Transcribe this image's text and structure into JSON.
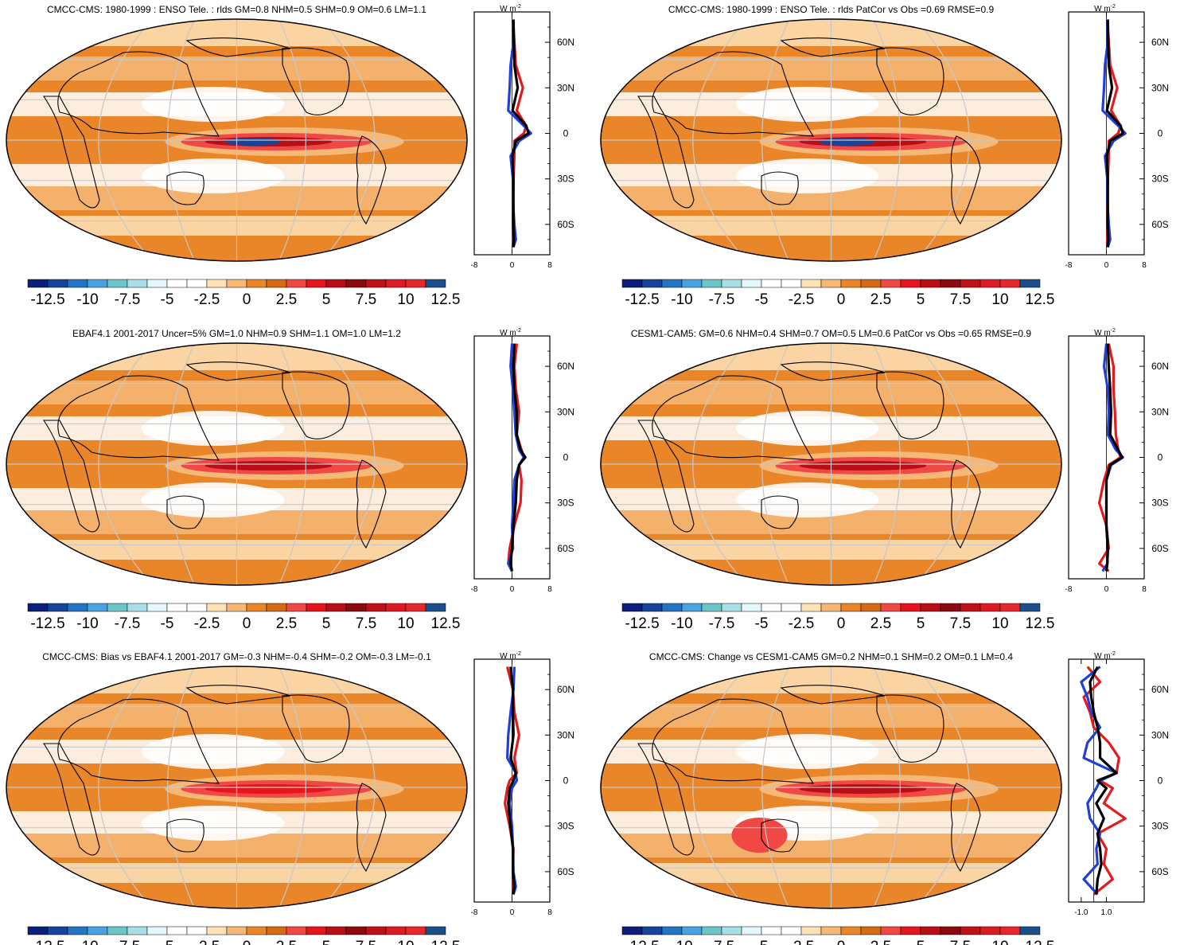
{
  "palette": [
    "#0b1f7a",
    "#16449a",
    "#2474c4",
    "#4aa3e0",
    "#6cc6c9",
    "#a8dfe6",
    "#e2f8fb",
    "#ffffff",
    "#ffffff",
    "#fde2b8",
    "#f6b877",
    "#e9862a",
    "#d36b16",
    "#f04845",
    "#e4151c",
    "#b80f16",
    "#8a0a10",
    "#c01018",
    "#dc1c22",
    "#e5282a",
    "#1b4f8a"
  ],
  "colorbar": {
    "labels": [
      "-12.5",
      "-10",
      "-7.5",
      "-5",
      "-2.5",
      "0",
      "2.5",
      "5",
      "7.5",
      "10",
      "12.5"
    ]
  },
  "zonal": {
    "unit": "W m",
    "unit_sup": "-2",
    "lat_labels": [
      "60N",
      "30N",
      "0",
      "30S",
      "60S"
    ],
    "series_colors": {
      "red": "#e41a1c",
      "blue": "#1f3fd9",
      "black": "#000000"
    }
  },
  "panels": [
    {
      "title": "CMCC-CMS: 1980-1999 : ENSO Tele. : rlds GM=0.8 NHM=0.5 SHM=0.9 OM=0.6 LM=1.1",
      "x_ticks": [
        "-8",
        "0",
        "8"
      ],
      "chart_data": {
        "type": "line",
        "y_axis": "latitude (deg)",
        "x_range": [
          -8,
          8
        ],
        "y_range": [
          -80,
          80
        ],
        "lat": [
          75,
          60,
          45,
          30,
          15,
          5,
          0,
          -5,
          -15,
          -30,
          -45,
          -60,
          -70,
          -75
        ],
        "series": [
          {
            "color": "red",
            "values": [
              0.2,
              0.5,
              0.8,
              2.3,
              1.0,
              3.0,
              2.5,
              0.5,
              0.5,
              0.3,
              0.2,
              0.3,
              0.2,
              0.3
            ]
          },
          {
            "color": "blue",
            "values": [
              0.2,
              0.3,
              -0.3,
              -0.5,
              -0.8,
              2.5,
              4.0,
              1.5,
              -0.3,
              0.2,
              0.2,
              0.5,
              0.8,
              0.3
            ]
          },
          {
            "color": "black",
            "values": [
              0.3,
              0.4,
              0.5,
              1.2,
              0.1,
              3.0,
              3.5,
              0.8,
              0.1,
              0.3,
              0.3,
              0.3,
              0.4,
              0.3
            ]
          }
        ]
      }
    },
    {
      "title": "CMCC-CMS: 1980-1999 : ENSO Tele. : rlds PatCor vs Obs =0.69 RMSE=0.9",
      "x_ticks": [
        "-8",
        "0",
        "8"
      ],
      "chart_data": {
        "type": "line",
        "y_axis": "latitude (deg)",
        "x_range": [
          -8,
          8
        ],
        "y_range": [
          -80,
          80
        ],
        "lat": [
          75,
          60,
          45,
          30,
          15,
          5,
          0,
          -5,
          -15,
          -30,
          -45,
          -60,
          -70,
          -75
        ],
        "series": [
          {
            "color": "red",
            "values": [
              0.2,
              0.5,
              0.8,
              2.3,
              1.0,
              3.0,
              2.5,
              0.5,
              0.5,
              0.3,
              0.2,
              0.3,
              0.2,
              0.3
            ]
          },
          {
            "color": "blue",
            "values": [
              0.2,
              0.3,
              -0.3,
              -0.5,
              -0.8,
              2.5,
              4.0,
              1.5,
              -0.3,
              0.2,
              0.2,
              0.5,
              0.8,
              0.3
            ]
          },
          {
            "color": "black",
            "values": [
              0.3,
              0.4,
              0.5,
              1.2,
              0.1,
              3.0,
              3.5,
              0.8,
              0.1,
              0.3,
              0.3,
              0.3,
              0.4,
              0.3
            ]
          }
        ]
      }
    },
    {
      "title": "EBAF4.1 2001-2017 Uncer=5% GM=1.0 NHM=0.9 SHM=1.1 OM=1.0 LM=1.2",
      "x_ticks": [
        "-8",
        "0",
        "8"
      ],
      "chart_data": {
        "type": "line",
        "y_axis": "latitude (deg)",
        "x_range": [
          -8,
          8
        ],
        "y_range": [
          -80,
          80
        ],
        "lat": [
          75,
          60,
          45,
          30,
          15,
          5,
          0,
          -5,
          -15,
          -30,
          -45,
          -60,
          -70,
          -75
        ],
        "series": [
          {
            "color": "red",
            "values": [
              1.0,
              0.5,
              0.8,
              1.5,
              1.0,
              2.0,
              2.5,
              1.5,
              2.0,
              1.8,
              0.5,
              -0.5,
              -0.8,
              0.0
            ]
          },
          {
            "color": "blue",
            "values": [
              0.0,
              -0.3,
              0.2,
              0.5,
              0.8,
              1.5,
              2.5,
              1.5,
              0.5,
              0.3,
              0.0,
              0.2,
              -0.8,
              0.0
            ]
          },
          {
            "color": "black",
            "values": [
              0.5,
              0.3,
              0.5,
              1.0,
              1.0,
              1.8,
              2.8,
              1.5,
              1.0,
              0.8,
              0.3,
              0.0,
              -0.3,
              0.0
            ]
          }
        ]
      }
    },
    {
      "title": "CESM1-CAM5: GM=0.6 NHM=0.4 SHM=0.7 OM=0.5 LM=0.6 PatCor vs Obs =0.65 RMSE=0.9",
      "x_ticks": [
        "-8",
        "0",
        "8"
      ],
      "chart_data": {
        "type": "line",
        "y_axis": "latitude (deg)",
        "x_range": [
          -8,
          8
        ],
        "y_range": [
          -80,
          80
        ],
        "lat": [
          75,
          60,
          45,
          30,
          15,
          5,
          0,
          -5,
          -15,
          -30,
          -45,
          -60,
          -70,
          -75
        ],
        "series": [
          {
            "color": "red",
            "values": [
              0.5,
              1.5,
              1.5,
              1.8,
              2.0,
              2.5,
              3.0,
              0.5,
              -0.5,
              -1.5,
              0.0,
              0.5,
              -1.5,
              0.5
            ]
          },
          {
            "color": "blue",
            "values": [
              0.0,
              -0.5,
              0.3,
              0.5,
              0.3,
              2.0,
              3.5,
              1.0,
              0.0,
              0.0,
              0.0,
              0.3,
              0.2,
              -0.8
            ]
          },
          {
            "color": "black",
            "values": [
              0.3,
              0.5,
              0.8,
              1.0,
              0.8,
              2.5,
              3.3,
              0.8,
              0.0,
              0.0,
              0.0,
              0.3,
              0.2,
              0.0
            ]
          }
        ]
      }
    },
    {
      "title": "CMCC-CMS: Bias vs EBAF4.1 2001-2017 GM=-0.3 NHM=-0.4 SHM=-0.2 OM=-0.3 LM=-0.1",
      "x_ticks": [
        "-8",
        "0",
        "8"
      ],
      "chart_data": {
        "type": "line",
        "y_axis": "latitude (deg)",
        "x_range": [
          -8,
          8
        ],
        "y_range": [
          -80,
          80
        ],
        "lat": [
          75,
          60,
          45,
          30,
          15,
          5,
          0,
          -5,
          -15,
          -30,
          -45,
          -60,
          -70,
          -75
        ],
        "series": [
          {
            "color": "red",
            "values": [
              -1.0,
              0.2,
              0.5,
              1.5,
              0.5,
              1.0,
              -0.5,
              -1.0,
              -1.5,
              -0.5,
              0.3,
              0.2,
              0.3,
              0.2
            ]
          },
          {
            "color": "blue",
            "values": [
              0.5,
              0.3,
              -0.3,
              -0.8,
              -1.0,
              0.8,
              1.0,
              0.0,
              -0.5,
              0.0,
              0.2,
              0.3,
              0.8,
              0.3
            ]
          },
          {
            "color": "black",
            "values": [
              -0.3,
              0.2,
              0.2,
              0.3,
              -0.3,
              0.8,
              0.3,
              -0.5,
              -0.8,
              -0.3,
              0.2,
              0.2,
              0.5,
              0.2
            ]
          }
        ]
      }
    },
    {
      "title": "CMCC-CMS: Change vs CESM1-CAM5 GM=0.2 NHM=0.1 SHM=0.2 OM=0.1 LM=0.4",
      "x_ticks": [
        "-1.0",
        "1.0"
      ],
      "chart_data": {
        "type": "line",
        "y_axis": "latitude (deg)",
        "x_range": [
          -2,
          4
        ],
        "y_range": [
          -80,
          80
        ],
        "lat": [
          75,
          65,
          55,
          45,
          35,
          25,
          15,
          5,
          0,
          -5,
          -15,
          -25,
          -35,
          -45,
          -55,
          -65,
          -75
        ],
        "series": [
          {
            "color": "red",
            "values": [
              -0.5,
              0.5,
              -0.8,
              -0.3,
              0.0,
              1.2,
              2.0,
              1.8,
              0.5,
              1.5,
              0.8,
              2.5,
              0.3,
              1.0,
              0.8,
              1.5,
              0.0
            ]
          },
          {
            "color": "blue",
            "values": [
              0.5,
              -1.0,
              -0.5,
              -0.2,
              0.5,
              -0.5,
              -0.8,
              1.8,
              0.5,
              0.2,
              -0.5,
              -0.3,
              0.5,
              0.2,
              0.3,
              -0.8,
              0.3
            ]
          },
          {
            "color": "black",
            "values": [
              0.3,
              -0.3,
              -0.2,
              0.0,
              0.3,
              0.5,
              0.5,
              1.8,
              0.3,
              1.0,
              0.2,
              0.8,
              0.3,
              0.5,
              0.6,
              0.3,
              0.2
            ]
          }
        ]
      }
    }
  ]
}
